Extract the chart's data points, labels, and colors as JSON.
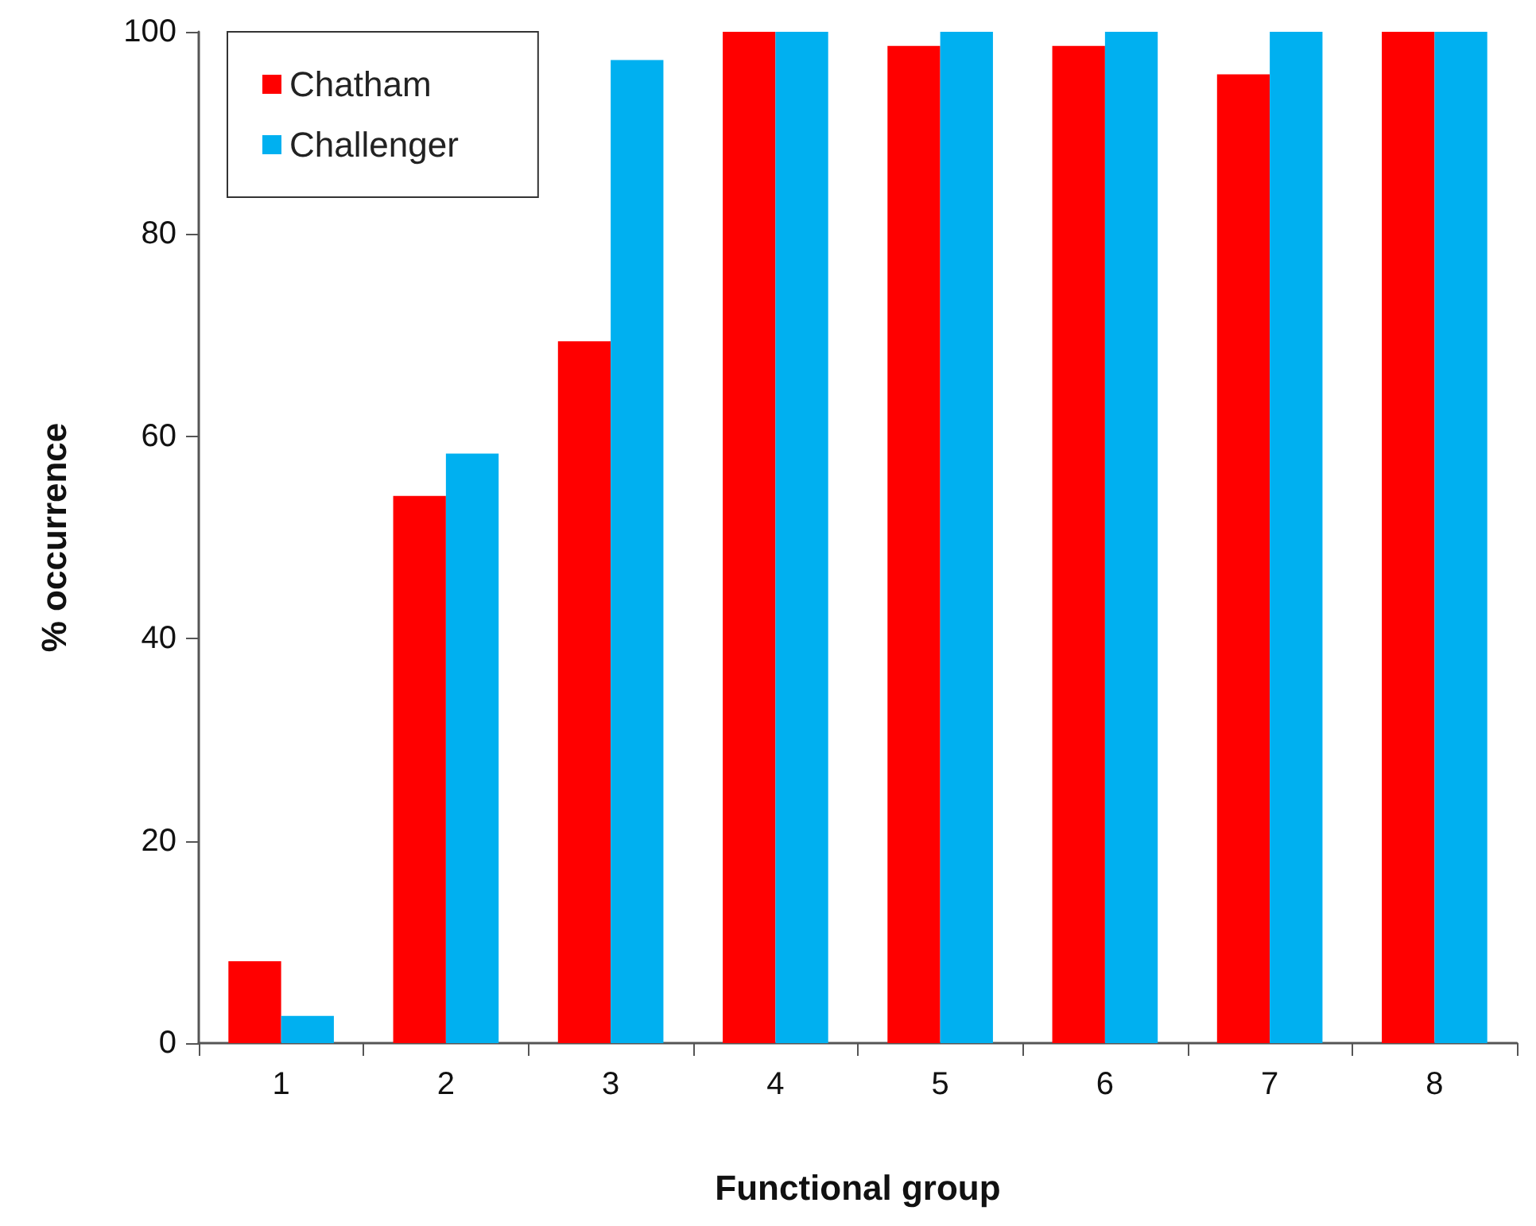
{
  "chart_data": {
    "type": "bar",
    "xlabel": "Functional group",
    "ylabel": "% occurrence",
    "categories": [
      "1",
      "2",
      "3",
      "4",
      "5",
      "6",
      "7",
      "8"
    ],
    "series": [
      {
        "name": "Chatham",
        "color": "#ff0000",
        "values": [
          8.1,
          54.1,
          69.4,
          100,
          98.6,
          98.6,
          95.8,
          100
        ]
      },
      {
        "name": "Challenger",
        "color": "#00b0f0",
        "values": [
          2.7,
          58.3,
          97.2,
          100,
          100,
          100,
          100,
          100
        ]
      }
    ],
    "ylim": [
      0,
      100
    ],
    "yticks": [
      0,
      20,
      40,
      60,
      80,
      100
    ],
    "grid": false,
    "legend": "top left"
  }
}
